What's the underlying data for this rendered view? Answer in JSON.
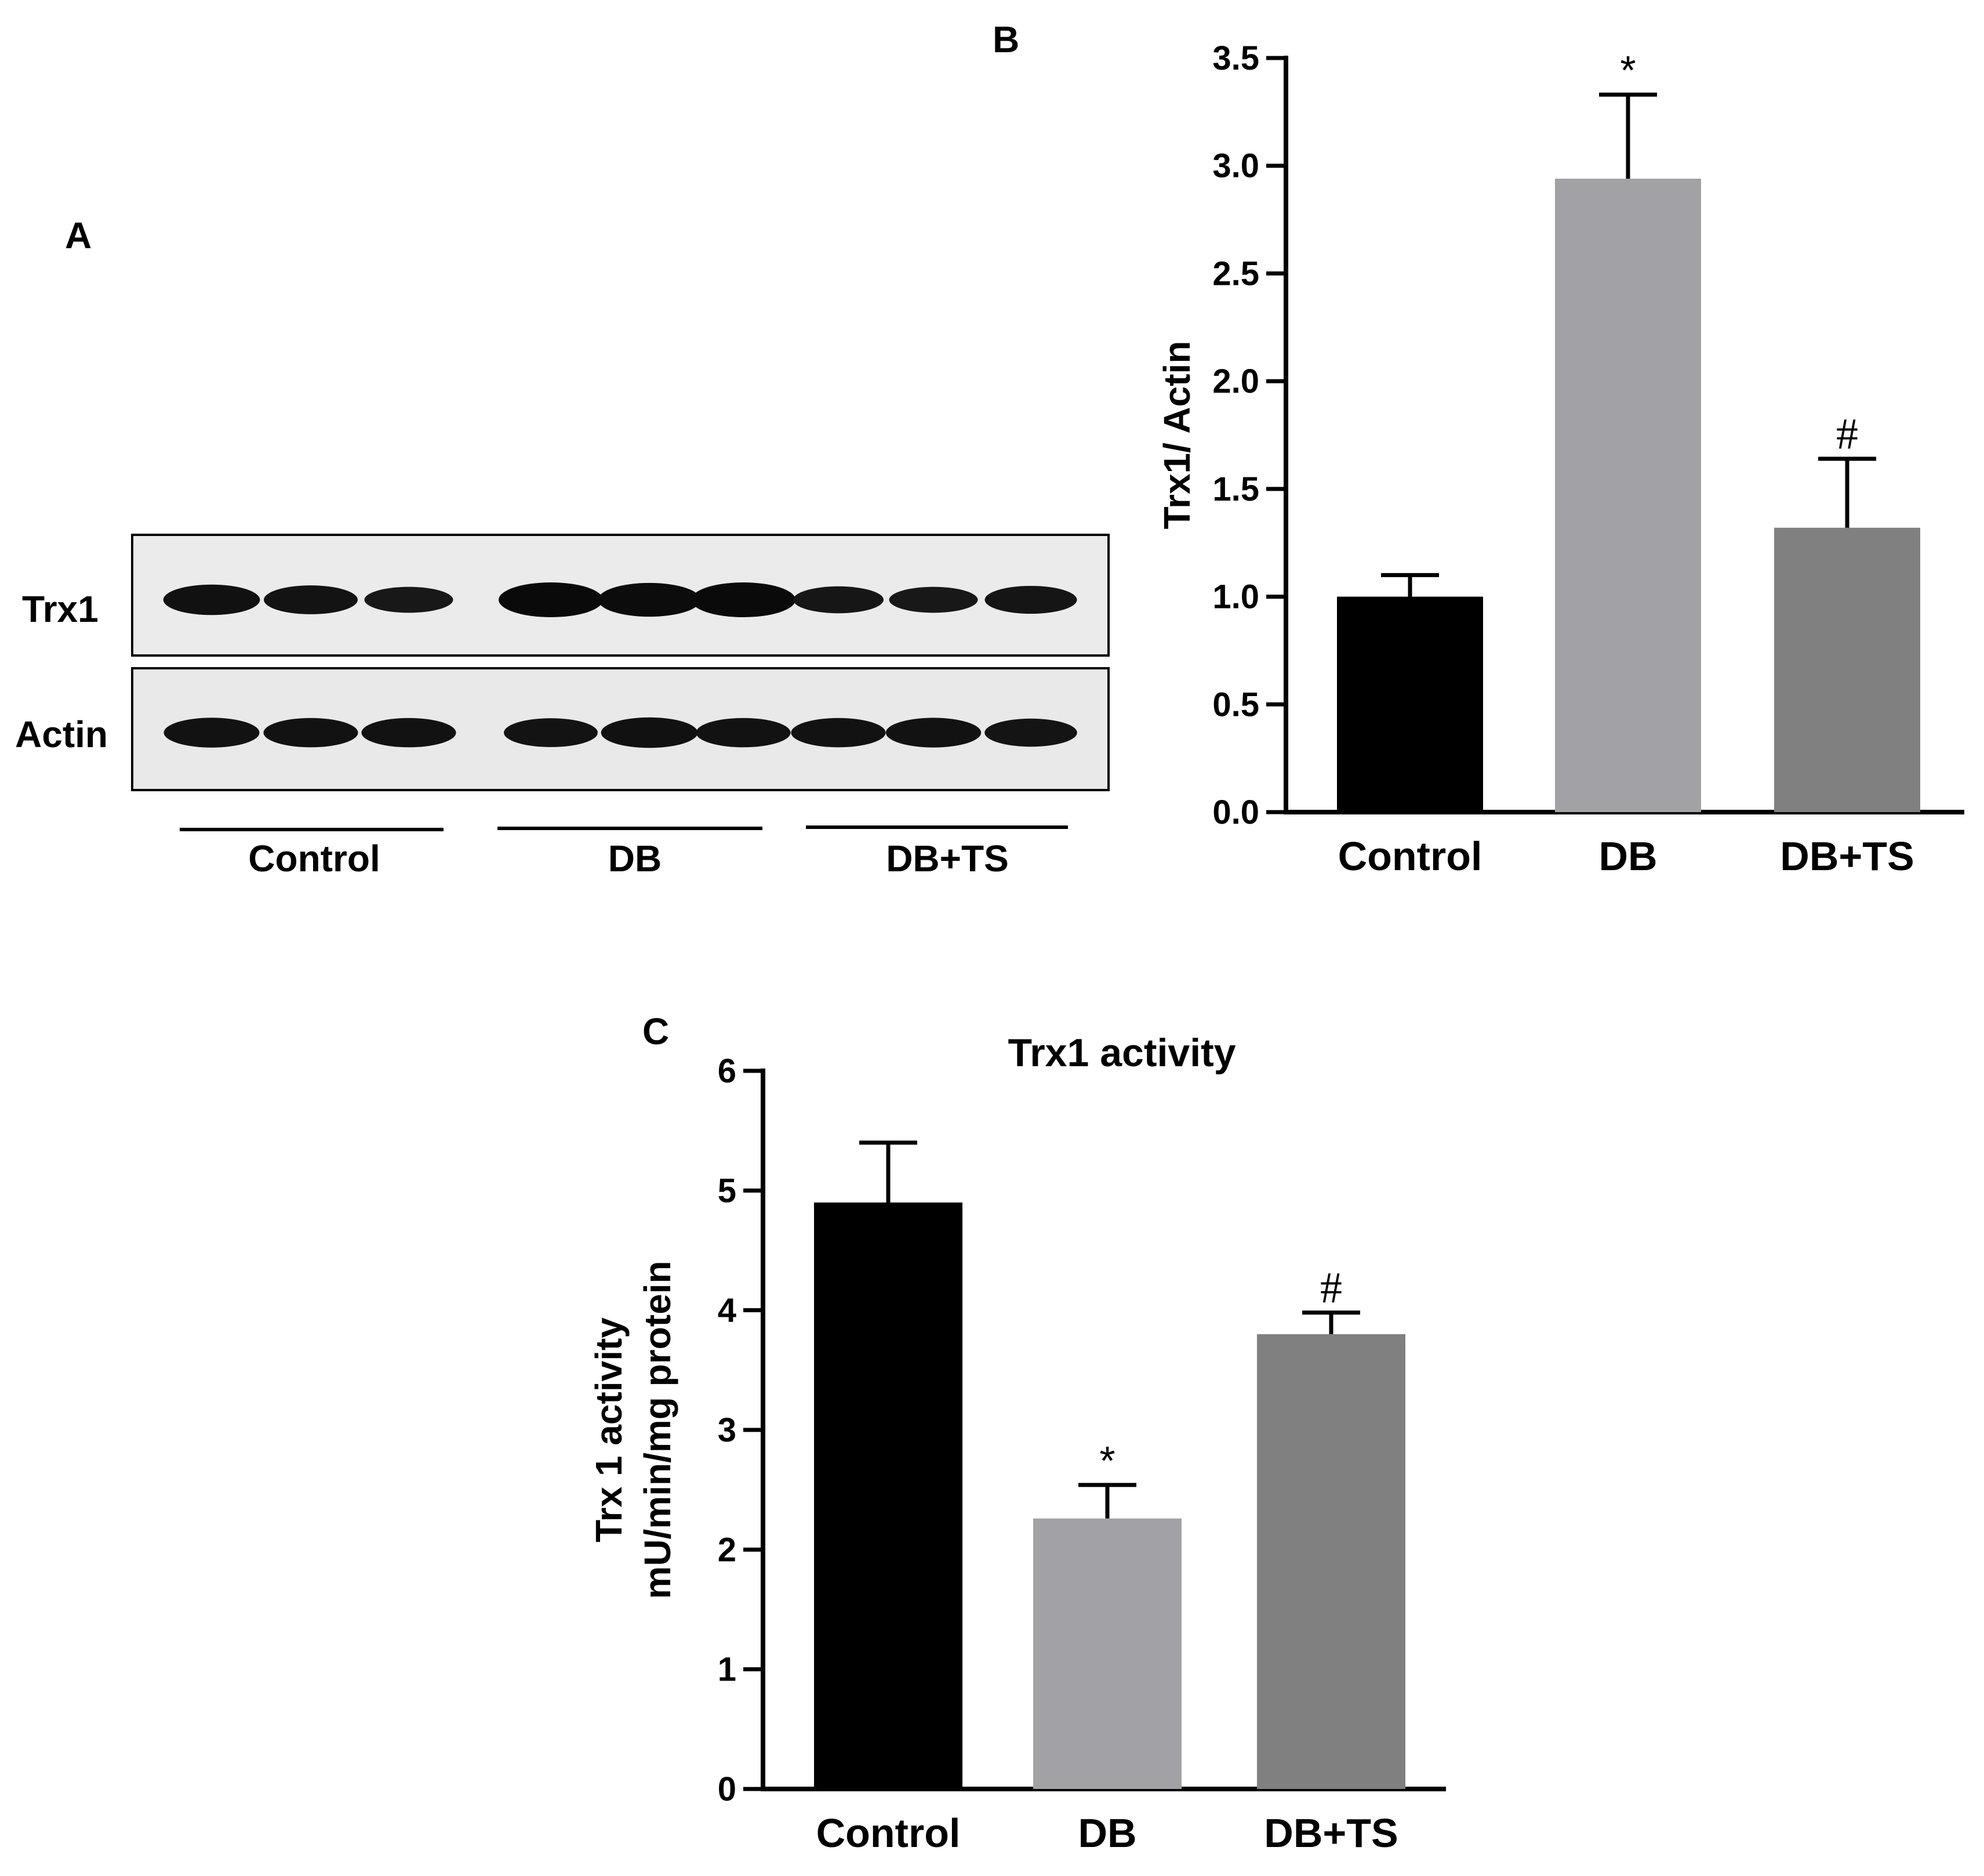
{
  "panels": {
    "a": "A",
    "b": "B",
    "c": "C"
  },
  "blot": {
    "rows": [
      {
        "label": "Trx1",
        "intensities": [
          0.78,
          0.7,
          0.55,
          1.0,
          0.95,
          1.0,
          0.6,
          0.55,
          0.65
        ]
      },
      {
        "label": "Actin",
        "intensities": [
          0.75,
          0.72,
          0.72,
          0.7,
          0.78,
          0.72,
          0.72,
          0.74,
          0.66
        ]
      }
    ],
    "groups": [
      "Control",
      "DB",
      "DB+TS"
    ]
  },
  "chart_data": [
    {
      "type": "bar",
      "panel": "B",
      "title": "",
      "xlabel": "",
      "ylabel": "Trx1/ Actin",
      "categories": [
        "Control",
        "DB",
        "DB+TS"
      ],
      "values": [
        1.0,
        2.94,
        1.32
      ],
      "errors": [
        0.1,
        0.39,
        0.32
      ],
      "annotations": [
        "",
        "*",
        "#"
      ],
      "ylim": [
        0,
        3.5
      ],
      "yticks": [
        "0.0",
        "0.5",
        "1.0",
        "1.5",
        "2.0",
        "2.5",
        "3.0",
        "3.5"
      ],
      "colors": [
        "#000000",
        "#a2a2a6",
        "#808080"
      ],
      "grid": false
    },
    {
      "type": "bar",
      "panel": "C",
      "title": "Trx1 activity",
      "xlabel": "",
      "ylabel": [
        "Trx 1 activity",
        "mU/min/mg protein"
      ],
      "categories": [
        "Control",
        "DB",
        "DB+TS"
      ],
      "values": [
        4.9,
        2.26,
        3.8
      ],
      "errors": [
        0.5,
        0.28,
        0.18
      ],
      "annotations": [
        "",
        "*",
        "#"
      ],
      "ylim": [
        0,
        6
      ],
      "yticks": [
        "0",
        "1",
        "2",
        "3",
        "4",
        "5",
        "6"
      ],
      "colors": [
        "#000000",
        "#a2a2a6",
        "#808080"
      ],
      "grid": false
    }
  ]
}
